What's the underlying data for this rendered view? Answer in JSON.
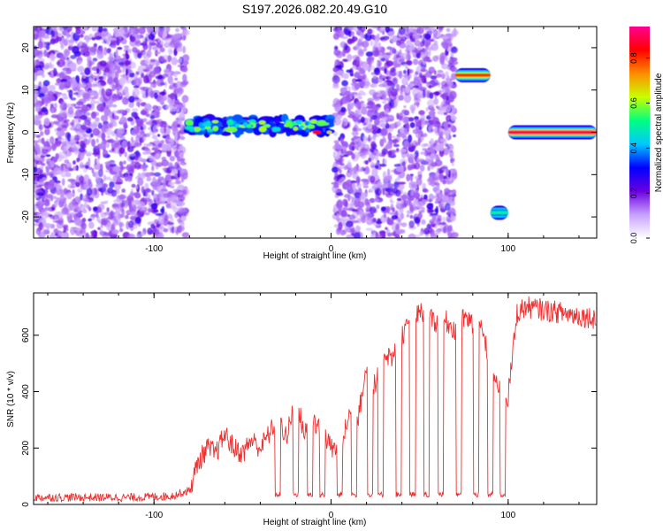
{
  "title": "S197.2026.082.20.49.G10",
  "chart_data": [
    {
      "type": "heatmap",
      "xlabel": "Height of straight line (km)",
      "ylabel": "Frequency (Hz)",
      "xlim": [
        -168,
        150
      ],
      "ylim": [
        -25,
        25
      ],
      "x_ticks": [
        -100,
        0,
        100
      ],
      "y_ticks": [
        -20,
        -10,
        0,
        10,
        20
      ],
      "colorbar": {
        "label": "Normalized spectral amplitude",
        "range": [
          0,
          0.94
        ],
        "ticks": [
          0.0,
          0.2,
          0.4,
          0.6,
          0.8
        ],
        "colors": [
          "#ffffff",
          "#c8a0ff",
          "#6a00e0",
          "#0000ff",
          "#00c8ff",
          "#00ff80",
          "#c8ff00",
          "#ff8c00",
          "#ff0000",
          "#ff0090"
        ]
      },
      "features": [
        {
          "region": "noise",
          "x": [
            -168,
            -82
          ],
          "freq": [
            -25,
            25
          ],
          "amplitude": 0.1
        },
        {
          "region": "band",
          "x": [
            -82,
            0
          ],
          "freq": [
            -5,
            7
          ],
          "center_freq": 1.5,
          "amplitude": 0.5
        },
        {
          "region": "noise",
          "x": [
            2,
            70
          ],
          "freq": [
            -25,
            25
          ],
          "amplitude": 0.1
        },
        {
          "region": "tone",
          "x": [
            70,
            90
          ],
          "freq": 13.5,
          "amplitude": 0.8
        },
        {
          "region": "tone",
          "x": [
            90,
            100
          ],
          "freq": -19,
          "amplitude": 0.5
        },
        {
          "region": "tone",
          "x": [
            100,
            150
          ],
          "freq": 0,
          "amplitude": 0.9
        }
      ]
    },
    {
      "type": "line",
      "xlabel": "Height of straight line (km)",
      "ylabel": "SNR (10 * v/v)",
      "xlim": [
        -168,
        150
      ],
      "ylim": [
        0,
        750
      ],
      "x_ticks": [
        -100,
        0,
        100
      ],
      "y_ticks": [
        0,
        200,
        400,
        600
      ],
      "color": "#ee3030",
      "series": [
        {
          "x": [
            -168,
            -150,
            -130,
            -110,
            -90,
            -80,
            -75,
            -70,
            -65,
            -60,
            -55,
            -50,
            -45,
            -40,
            -35,
            -30,
            -25,
            -20,
            -15,
            -10,
            -5,
            0,
            5,
            10,
            15,
            20,
            25,
            30,
            35,
            40,
            45,
            50,
            55,
            60,
            65,
            70,
            75,
            80,
            85,
            90,
            95,
            100,
            105,
            110,
            120,
            130,
            140,
            150
          ],
          "y": [
            25,
            25,
            25,
            25,
            30,
            50,
            150,
            200,
            180,
            250,
            200,
            180,
            230,
            200,
            250,
            300,
            240,
            380,
            250,
            300,
            260,
            200,
            180,
            320,
            300,
            480,
            420,
            540,
            520,
            600,
            650,
            680,
            660,
            640,
            650,
            620,
            660,
            640,
            620,
            500,
            400,
            380,
            680,
            700,
            690,
            680,
            670,
            660
          ]
        }
      ]
    }
  ]
}
